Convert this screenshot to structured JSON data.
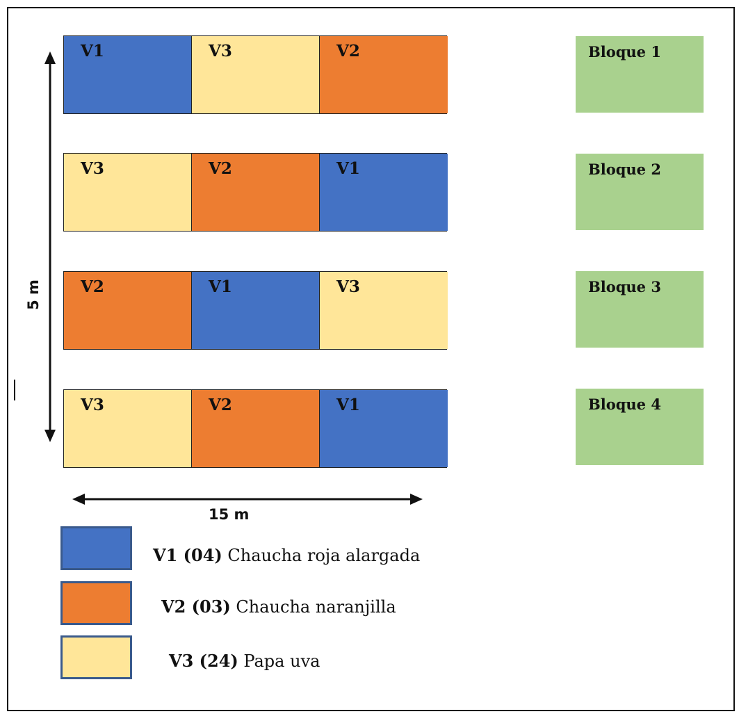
{
  "colors": {
    "V1": "#4472c4",
    "V2": "#ed7d31",
    "V3": "#ffe699",
    "block": "#a9d18e"
  },
  "rows": [
    {
      "cells": [
        "V1",
        "V3",
        "V2"
      ],
      "block": "Bloque 1"
    },
    {
      "cells": [
        "V3",
        "V2",
        "V1"
      ],
      "block": "Bloque 2"
    },
    {
      "cells": [
        "V2",
        "V1",
        "V3"
      ],
      "block": "Bloque 3"
    },
    {
      "cells": [
        "V3",
        "V2",
        "V1"
      ],
      "block": "Bloque 4"
    }
  ],
  "dimensions": {
    "vertical": "5 m",
    "horizontal": "15 m"
  },
  "legend": [
    {
      "key": "V1",
      "code": "V1 (04)",
      "name": " Chaucha roja alargada"
    },
    {
      "key": "V2",
      "code": "V2 (03)",
      "name": " Chaucha naranjilla"
    },
    {
      "key": "V3",
      "code": "V3 (24)",
      "name": " Papa uva"
    }
  ]
}
